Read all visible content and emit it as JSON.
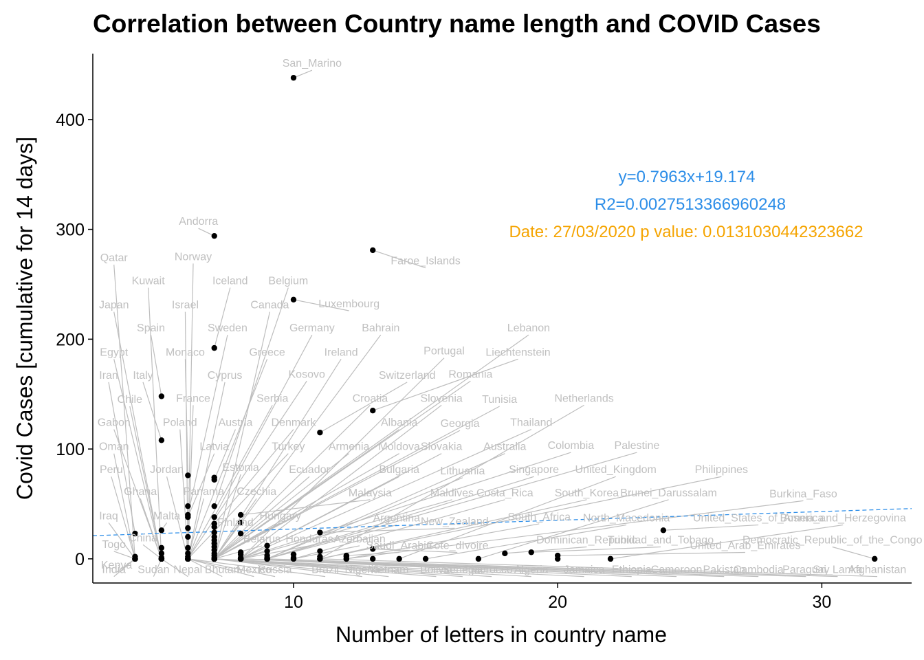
{
  "chart_data": {
    "type": "scatter",
    "title": "Correlation between Country name length and COVID Cases",
    "xlabel": "Number of letters in country name",
    "ylabel": "Covid Cases [cumulative for 14 days]",
    "xlim": [
      2.4,
      33.4
    ],
    "ylim": [
      -22,
      460
    ],
    "xticks": [
      10,
      20,
      30
    ],
    "yticks": [
      0,
      100,
      200,
      300,
      400
    ],
    "grid": false,
    "regression": {
      "slope": 0.7963,
      "intercept": 19.174,
      "color": "#2d8ee8"
    },
    "annotations": {
      "equation": "y=0.7963x+19.174",
      "r2": "R2=0.0027513366960248",
      "date_p": "Date: 27/03/2020  p value: 0.0131030442323662"
    },
    "points": [
      {
        "name": "San_Marino",
        "x": 10,
        "y": 438,
        "lx": 10.7,
        "ly": 448
      },
      {
        "name": "Andorra",
        "x": 7,
        "y": 294,
        "lx": 6.4,
        "ly": 304
      },
      {
        "name": "Faroe_Islands",
        "x": 13,
        "y": 281,
        "lx": 15.0,
        "ly": 268
      },
      {
        "name": "Luxembourg",
        "x": 10,
        "y": 236,
        "lx": 12.1,
        "ly": 229
      },
      {
        "name": "Norway",
        "x": 6,
        "y": 0,
        "lx": 6.2,
        "ly": 272
      },
      {
        "name": "Qatar",
        "x": 4,
        "y": 0,
        "lx": 3.2,
        "ly": 271
      },
      {
        "name": "Iceland",
        "x": 7,
        "y": 192,
        "lx": 7.6,
        "ly": 250
      },
      {
        "name": "Belgium",
        "x": 7,
        "y": 48,
        "lx": 9.8,
        "ly": 250
      },
      {
        "name": "Kuwait",
        "x": 5,
        "y": 0,
        "lx": 4.5,
        "ly": 250
      },
      {
        "name": "Israel",
        "x": 6,
        "y": 0,
        "lx": 5.9,
        "ly": 228
      },
      {
        "name": "Canada",
        "x": 7,
        "y": 0,
        "lx": 9.1,
        "ly": 228
      },
      {
        "name": "Japan",
        "x": 5,
        "y": 0,
        "lx": 3.2,
        "ly": 228
      },
      {
        "name": "Spain",
        "x": 5,
        "y": 148,
        "lx": 4.6,
        "ly": 207
      },
      {
        "name": "Sweden",
        "x": 6,
        "y": 40,
        "lx": 7.5,
        "ly": 207
      },
      {
        "name": "Germany",
        "x": 7,
        "y": 38,
        "lx": 10.7,
        "ly": 207
      },
      {
        "name": "Bahrain",
        "x": 7,
        "y": 0,
        "lx": 13.3,
        "ly": 207
      },
      {
        "name": "Lebanon",
        "x": 7,
        "y": 0,
        "lx": 18.9,
        "ly": 207
      },
      {
        "name": "Egypt",
        "x": 5,
        "y": 0,
        "lx": 3.2,
        "ly": 185
      },
      {
        "name": "Monaco",
        "x": 6,
        "y": 76,
        "lx": 5.9,
        "ly": 185
      },
      {
        "name": "Greece",
        "x": 6,
        "y": 0,
        "lx": 9.0,
        "ly": 185
      },
      {
        "name": "Ireland",
        "x": 7,
        "y": 0,
        "lx": 11.8,
        "ly": 185
      },
      {
        "name": "Portugal",
        "x": 8,
        "y": 0,
        "lx": 15.7,
        "ly": 186
      },
      {
        "name": "Liechtenstein",
        "x": 13,
        "y": 135,
        "lx": 18.5,
        "ly": 185
      },
      {
        "name": "Iran",
        "x": 4,
        "y": 23,
        "lx": 3.0,
        "ly": 164
      },
      {
        "name": "Italy",
        "x": 5,
        "y": 108,
        "lx": 4.3,
        "ly": 164
      },
      {
        "name": "Cyprus",
        "x": 6,
        "y": 0,
        "lx": 7.4,
        "ly": 164
      },
      {
        "name": "Kosovo",
        "x": 6,
        "y": 0,
        "lx": 10.5,
        "ly": 165
      },
      {
        "name": "Switzerland",
        "x": 11,
        "y": 115,
        "lx": 14.3,
        "ly": 164
      },
      {
        "name": "Romania",
        "x": 7,
        "y": 0,
        "lx": 16.7,
        "ly": 165
      },
      {
        "name": "Chile",
        "x": 5,
        "y": 0,
        "lx": 3.8,
        "ly": 142
      },
      {
        "name": "France",
        "x": 6,
        "y": 0,
        "lx": 6.2,
        "ly": 143
      },
      {
        "name": "Serbia",
        "x": 6,
        "y": 0,
        "lx": 9.2,
        "ly": 143
      },
      {
        "name": "Croatia",
        "x": 7,
        "y": 0,
        "lx": 12.9,
        "ly": 143
      },
      {
        "name": "Slovenia",
        "x": 8,
        "y": 0,
        "lx": 15.6,
        "ly": 143
      },
      {
        "name": "Tunisia",
        "x": 7,
        "y": 0,
        "lx": 17.8,
        "ly": 142
      },
      {
        "name": "Netherlands",
        "x": 11,
        "y": 0,
        "lx": 21.0,
        "ly": 143
      },
      {
        "name": "Gabon",
        "x": 5,
        "y": 0,
        "lx": 3.2,
        "ly": 121
      },
      {
        "name": "Poland",
        "x": 6,
        "y": 0,
        "lx": 5.7,
        "ly": 121
      },
      {
        "name": "Austria",
        "x": 7,
        "y": 72,
        "lx": 7.8,
        "ly": 121
      },
      {
        "name": "Denmark",
        "x": 7,
        "y": 32,
        "lx": 10.0,
        "ly": 121
      },
      {
        "name": "Albania",
        "x": 7,
        "y": 0,
        "lx": 14.0,
        "ly": 121
      },
      {
        "name": "Georgia",
        "x": 7,
        "y": 0,
        "lx": 16.3,
        "ly": 120
      },
      {
        "name": "Thailand",
        "x": 8,
        "y": 0,
        "lx": 19.0,
        "ly": 121
      },
      {
        "name": "Oman",
        "x": 4,
        "y": 0,
        "lx": 3.2,
        "ly": 99
      },
      {
        "name": "Latvia",
        "x": 6,
        "y": 38,
        "lx": 7.0,
        "ly": 99
      },
      {
        "name": "Turkey",
        "x": 6,
        "y": 0,
        "lx": 9.8,
        "ly": 99
      },
      {
        "name": "Armenia",
        "x": 7,
        "y": 0,
        "lx": 12.1,
        "ly": 99
      },
      {
        "name": "Moldova",
        "x": 7,
        "y": 0,
        "lx": 14.0,
        "ly": 99
      },
      {
        "name": "Slovakia",
        "x": 8,
        "y": 0,
        "lx": 15.6,
        "ly": 99
      },
      {
        "name": "Australia",
        "x": 9,
        "y": 0,
        "lx": 18.0,
        "ly": 99
      },
      {
        "name": "Colombia",
        "x": 8,
        "y": 0,
        "lx": 20.5,
        "ly": 100
      },
      {
        "name": "Palestine",
        "x": 9,
        "y": 0,
        "lx": 23.0,
        "ly": 100
      },
      {
        "name": "Peru",
        "x": 4,
        "y": 0,
        "lx": 3.1,
        "ly": 78
      },
      {
        "name": "Jordan",
        "x": 6,
        "y": 0,
        "lx": 5.2,
        "ly": 78
      },
      {
        "name": "Estonia",
        "x": 7,
        "y": 0,
        "lx": 8.0,
        "ly": 80
      },
      {
        "name": "Ecuador",
        "x": 7,
        "y": 0,
        "lx": 10.6,
        "ly": 78
      },
      {
        "name": "Bulgaria",
        "x": 8,
        "y": 0,
        "lx": 14.0,
        "ly": 78
      },
      {
        "name": "Lithuania",
        "x": 9,
        "y": 0,
        "lx": 16.4,
        "ly": 77
      },
      {
        "name": "Singapore",
        "x": 9,
        "y": 0,
        "lx": 19.1,
        "ly": 78
      },
      {
        "name": "United_Kingdom",
        "x": 14,
        "y": 0,
        "lx": 22.2,
        "ly": 78
      },
      {
        "name": "Philippines",
        "x": 11,
        "y": 0,
        "lx": 26.2,
        "ly": 78
      },
      {
        "name": "Ghana",
        "x": 5,
        "y": 0,
        "lx": 4.2,
        "ly": 58
      },
      {
        "name": "Panama",
        "x": 6,
        "y": 0,
        "lx": 6.6,
        "ly": 58
      },
      {
        "name": "Czechia",
        "x": 7,
        "y": 0,
        "lx": 8.6,
        "ly": 58
      },
      {
        "name": "Malaysia",
        "x": 8,
        "y": 40,
        "lx": 12.9,
        "ly": 57
      },
      {
        "name": "Maldives",
        "x": 8,
        "y": 0,
        "lx": 16.0,
        "ly": 57
      },
      {
        "name": "Costa_Rica",
        "x": 10,
        "y": 0,
        "lx": 18.0,
        "ly": 57
      },
      {
        "name": "South_Korea",
        "x": 11,
        "y": 0,
        "lx": 21.1,
        "ly": 57
      },
      {
        "name": "Brunei_Darussalam",
        "x": 17,
        "y": 0,
        "lx": 24.2,
        "ly": 57
      },
      {
        "name": "Burkina_Faso",
        "x": 12,
        "y": 0,
        "lx": 29.3,
        "ly": 56
      },
      {
        "name": "Iraq",
        "x": 4,
        "y": 0,
        "lx": 3.0,
        "ly": 36
      },
      {
        "name": "Malta",
        "x": 5,
        "y": 26,
        "lx": 5.2,
        "ly": 36
      },
      {
        "name": "Hungary",
        "x": 7,
        "y": 0,
        "lx": 9.5,
        "ly": 36
      },
      {
        "name": "Argentina",
        "x": 9,
        "y": 0,
        "lx": 13.9,
        "ly": 34
      },
      {
        "name": "New_Zealand",
        "x": 11,
        "y": 24,
        "lx": 16.1,
        "ly": 31
      },
      {
        "name": "South_Africa",
        "x": 12,
        "y": 0,
        "lx": 19.3,
        "ly": 35
      },
      {
        "name": "North_Macedonia",
        "x": 15,
        "y": 0,
        "lx": 22.6,
        "ly": 34
      },
      {
        "name": "United_States_of_America",
        "x": 24,
        "y": 26,
        "lx": 27.6,
        "ly": 34
      },
      {
        "name": "Bosnia_and_Herzegovina",
        "x": 22,
        "y": 0,
        "lx": 30.8,
        "ly": 34
      },
      {
        "name": "China",
        "x": 5,
        "y": 0,
        "lx": 4.3,
        "ly": 16
      },
      {
        "name": "Finland",
        "x": 7,
        "y": 0,
        "lx": 7.8,
        "ly": 30
      },
      {
        "name": "Belarus",
        "x": 7,
        "y": 0,
        "lx": 8.8,
        "ly": 15
      },
      {
        "name": "Honduras",
        "x": 8,
        "y": 0,
        "lx": 10.6,
        "ly": 15
      },
      {
        "name": "Azerbaijan",
        "x": 10,
        "y": 0,
        "lx": 12.5,
        "ly": 15
      },
      {
        "name": "Saudi_Arabia",
        "x": 12,
        "y": 3,
        "lx": 14.0,
        "ly": 9
      },
      {
        "name": "Cote_dIvoire",
        "x": 13,
        "y": 9,
        "lx": 16.2,
        "ly": 9
      },
      {
        "name": "Dominican_Republic",
        "x": 18,
        "y": 5,
        "lx": 21.1,
        "ly": 14
      },
      {
        "name": "Trinidad_and_Tobago",
        "x": 19,
        "y": 6,
        "lx": 23.9,
        "ly": 14
      },
      {
        "name": "United_Arab_Emirates",
        "x": 20,
        "y": 3,
        "lx": 27.1,
        "ly": 9
      },
      {
        "name": "Democratic_Republic_of_the_Congo",
        "x": 32,
        "y": 0,
        "lx": 30.4,
        "ly": 14
      },
      {
        "name": "Togo",
        "x": 4,
        "y": 0,
        "lx": 3.2,
        "ly": 10
      },
      {
        "name": "Kenya",
        "x": 4,
        "y": 0,
        "lx": 3.3,
        "ly": -9
      },
      {
        "name": "India",
        "x": 4,
        "y": 0,
        "lx": 3.2,
        "ly": -13
      },
      {
        "name": "Sudan",
        "x": 5,
        "y": 0,
        "lx": 4.7,
        "ly": -13
      },
      {
        "name": "Nepal",
        "x": 5,
        "y": 0,
        "lx": 6.0,
        "ly": -13
      },
      {
        "name": "Bhutan",
        "x": 6,
        "y": 0,
        "lx": 7.3,
        "ly": -13
      },
      {
        "name": "Mexico",
        "x": 6,
        "y": 0,
        "lx": 8.5,
        "ly": -13
      },
      {
        "name": "Russia",
        "x": 6,
        "y": 0,
        "lx": 9.3,
        "ly": -13
      },
      {
        "name": "Brazil",
        "x": 6,
        "y": 0,
        "lx": 11.2,
        "ly": -13
      },
      {
        "name": "Nigeria",
        "x": 7,
        "y": 0,
        "lx": 12.6,
        "ly": -13
      },
      {
        "name": "Vietnam",
        "x": 7,
        "y": 0,
        "lx": 13.6,
        "ly": -13
      },
      {
        "name": "Bolivia",
        "x": 7,
        "y": 0,
        "lx": 15.4,
        "ly": -13
      },
      {
        "name": "Senegal",
        "x": 7,
        "y": 0,
        "lx": 16.4,
        "ly": -13
      },
      {
        "name": "Morocco",
        "x": 7,
        "y": 0,
        "lx": 17.5,
        "ly": -13
      },
      {
        "name": "Algeria",
        "x": 7,
        "y": 0,
        "lx": 19.0,
        "ly": -13
      },
      {
        "name": "Jamaica",
        "x": 7,
        "y": 0,
        "lx": 21.0,
        "ly": -13
      },
      {
        "name": "Ethiopia",
        "x": 8,
        "y": 0,
        "lx": 22.8,
        "ly": -13
      },
      {
        "name": "Cameroon",
        "x": 8,
        "y": 0,
        "lx": 24.5,
        "ly": -13
      },
      {
        "name": "Pakistan",
        "x": 8,
        "y": 0,
        "lx": 26.3,
        "ly": -13
      },
      {
        "name": "Cambodia",
        "x": 8,
        "y": 0,
        "lx": 27.6,
        "ly": -13
      },
      {
        "name": "Paraguay",
        "x": 8,
        "y": 0,
        "lx": 29.4,
        "ly": -13
      },
      {
        "name": "Sri_Lanka",
        "x": 9,
        "y": 0,
        "lx": 30.6,
        "ly": -13
      },
      {
        "name": "Afghanistan",
        "x": 11,
        "y": 0,
        "lx": 32.1,
        "ly": -13
      }
    ],
    "extra_points": [
      {
        "x": 4,
        "y": 0
      },
      {
        "x": 4,
        "y": 2
      },
      {
        "x": 5,
        "y": 1
      },
      {
        "x": 5,
        "y": 5
      },
      {
        "x": 5,
        "y": 10
      },
      {
        "x": 6,
        "y": 2
      },
      {
        "x": 6,
        "y": 5
      },
      {
        "x": 6,
        "y": 10
      },
      {
        "x": 6,
        "y": 20
      },
      {
        "x": 6,
        "y": 28
      },
      {
        "x": 6,
        "y": 48
      },
      {
        "x": 7,
        "y": 1
      },
      {
        "x": 7,
        "y": 3
      },
      {
        "x": 7,
        "y": 5
      },
      {
        "x": 7,
        "y": 8
      },
      {
        "x": 7,
        "y": 11
      },
      {
        "x": 7,
        "y": 14
      },
      {
        "x": 7,
        "y": 17
      },
      {
        "x": 7,
        "y": 20
      },
      {
        "x": 7,
        "y": 24
      },
      {
        "x": 7,
        "y": 29
      },
      {
        "x": 7,
        "y": 74
      },
      {
        "x": 8,
        "y": 1
      },
      {
        "x": 8,
        "y": 4
      },
      {
        "x": 8,
        "y": 6
      },
      {
        "x": 8,
        "y": 23
      },
      {
        "x": 8,
        "y": 33
      },
      {
        "x": 9,
        "y": 1
      },
      {
        "x": 9,
        "y": 3
      },
      {
        "x": 9,
        "y": 7
      },
      {
        "x": 9,
        "y": 12
      },
      {
        "x": 10,
        "y": 1
      },
      {
        "x": 10,
        "y": 4
      },
      {
        "x": 11,
        "y": 2
      },
      {
        "x": 11,
        "y": 7
      },
      {
        "x": 12,
        "y": 2
      },
      {
        "x": 13,
        "y": 0
      },
      {
        "x": 20,
        "y": 0
      }
    ]
  }
}
